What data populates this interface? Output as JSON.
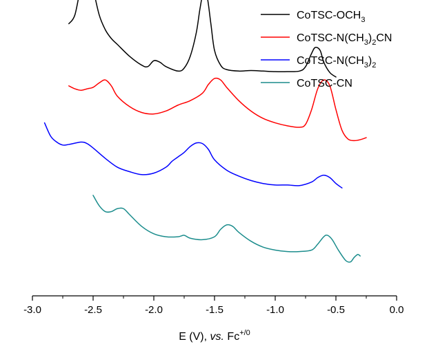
{
  "chart_data": {
    "type": "line",
    "title": "",
    "xlabel": {
      "pre": "E (V), ",
      "italic": "vs.",
      "post": " Fc",
      "sup": "+/0"
    },
    "ylabel": "",
    "xlim": [
      -3.0,
      0.0
    ],
    "y_ticks_shown": false,
    "grid": false,
    "legend": "top-right",
    "x_ticks": [
      {
        "value": -3.0,
        "label": "-3.0"
      },
      {
        "value": -2.5,
        "label": "-2.5"
      },
      {
        "value": -2.0,
        "label": "-2.0"
      },
      {
        "value": -1.5,
        "label": "-1.5"
      },
      {
        "value": -1.0,
        "label": "-1.0"
      },
      {
        "value": -0.5,
        "label": "-0.5"
      },
      {
        "value": 0.0,
        "label": "0.0"
      }
    ],
    "series": [
      {
        "name": "CoTSC-OCH3",
        "name_parts": [
          {
            "t": "CoTSC-OCH"
          },
          {
            "t": "3",
            "sub": true
          }
        ],
        "color": "#000000",
        "points": [
          [
            -2.7,
            4.5
          ],
          [
            -2.65,
            4.8
          ],
          [
            -2.6,
            5.8
          ],
          [
            -2.56,
            6.4
          ],
          [
            -2.53,
            6.3
          ],
          [
            -2.5,
            5.7
          ],
          [
            -2.45,
            4.8
          ],
          [
            -2.4,
            4.3
          ],
          [
            -2.35,
            4.0
          ],
          [
            -2.3,
            3.8
          ],
          [
            -2.2,
            3.4
          ],
          [
            -2.1,
            3.1
          ],
          [
            -2.05,
            3.05
          ],
          [
            -2.0,
            3.25
          ],
          [
            -1.95,
            3.2
          ],
          [
            -1.9,
            3.05
          ],
          [
            -1.8,
            2.9
          ],
          [
            -1.75,
            3.0
          ],
          [
            -1.7,
            3.4
          ],
          [
            -1.65,
            4.2
          ],
          [
            -1.62,
            5.0
          ],
          [
            -1.59,
            5.6
          ],
          [
            -1.56,
            5.4
          ],
          [
            -1.53,
            4.5
          ],
          [
            -1.5,
            3.6
          ],
          [
            -1.45,
            3.1
          ],
          [
            -1.4,
            2.95
          ],
          [
            -1.3,
            2.9
          ],
          [
            -1.2,
            2.92
          ],
          [
            -1.1,
            2.9
          ],
          [
            -1.0,
            2.88
          ],
          [
            -0.9,
            2.88
          ],
          [
            -0.8,
            2.9
          ],
          [
            -0.75,
            3.05
          ],
          [
            -0.7,
            3.5
          ],
          [
            -0.67,
            3.7
          ],
          [
            -0.63,
            3.6
          ],
          [
            -0.6,
            3.2
          ],
          [
            -0.55,
            2.85
          ],
          [
            -0.5,
            2.7
          ]
        ]
      },
      {
        "name": "CoTSC-N(CH3)2CN",
        "name_parts": [
          {
            "t": "CoTSC-N(CH"
          },
          {
            "t": "3",
            "sub": true
          },
          {
            "t": ")"
          },
          {
            "t": "2",
            "sub": true
          },
          {
            "t": "CN"
          }
        ],
        "color": "#ff0000",
        "points": [
          [
            -2.7,
            2.4
          ],
          [
            -2.65,
            2.3
          ],
          [
            -2.6,
            2.25
          ],
          [
            -2.55,
            2.3
          ],
          [
            -2.5,
            2.35
          ],
          [
            -2.45,
            2.5
          ],
          [
            -2.4,
            2.6
          ],
          [
            -2.35,
            2.4
          ],
          [
            -2.3,
            2.05
          ],
          [
            -2.2,
            1.7
          ],
          [
            -2.1,
            1.5
          ],
          [
            -2.0,
            1.45
          ],
          [
            -1.9,
            1.55
          ],
          [
            -1.8,
            1.75
          ],
          [
            -1.7,
            1.9
          ],
          [
            -1.6,
            2.15
          ],
          [
            -1.55,
            2.45
          ],
          [
            -1.5,
            2.65
          ],
          [
            -1.45,
            2.6
          ],
          [
            -1.4,
            2.35
          ],
          [
            -1.3,
            1.9
          ],
          [
            -1.2,
            1.55
          ],
          [
            -1.1,
            1.3
          ],
          [
            -1.0,
            1.15
          ],
          [
            -0.9,
            1.05
          ],
          [
            -0.8,
            1.0
          ],
          [
            -0.75,
            1.1
          ],
          [
            -0.7,
            1.6
          ],
          [
            -0.65,
            2.3
          ],
          [
            -0.6,
            2.6
          ],
          [
            -0.55,
            2.4
          ],
          [
            -0.5,
            1.6
          ],
          [
            -0.45,
            0.9
          ],
          [
            -0.4,
            0.6
          ],
          [
            -0.35,
            0.55
          ],
          [
            -0.3,
            0.58
          ],
          [
            -0.25,
            0.65
          ]
        ]
      },
      {
        "name": "CoTSC-N(CH3)2",
        "name_parts": [
          {
            "t": "CoTSC-N(CH"
          },
          {
            "t": "3",
            "sub": true
          },
          {
            "t": ")"
          },
          {
            "t": "2",
            "sub": true
          }
        ],
        "color": "#0000ff",
        "points": [
          [
            -2.9,
            1.15
          ],
          [
            -2.85,
            0.7
          ],
          [
            -2.8,
            0.5
          ],
          [
            -2.75,
            0.4
          ],
          [
            -2.7,
            0.42
          ],
          [
            -2.6,
            0.5
          ],
          [
            -2.55,
            0.45
          ],
          [
            -2.5,
            0.3
          ],
          [
            -2.4,
            -0.05
          ],
          [
            -2.3,
            -0.35
          ],
          [
            -2.2,
            -0.5
          ],
          [
            -2.1,
            -0.6
          ],
          [
            -2.0,
            -0.55
          ],
          [
            -1.9,
            -0.35
          ],
          [
            -1.85,
            -0.15
          ],
          [
            -1.8,
            0.0
          ],
          [
            -1.75,
            0.15
          ],
          [
            -1.7,
            0.35
          ],
          [
            -1.65,
            0.47
          ],
          [
            -1.6,
            0.45
          ],
          [
            -1.55,
            0.25
          ],
          [
            -1.5,
            -0.1
          ],
          [
            -1.4,
            -0.45
          ],
          [
            -1.3,
            -0.65
          ],
          [
            -1.2,
            -0.8
          ],
          [
            -1.1,
            -0.9
          ],
          [
            -1.0,
            -0.95
          ],
          [
            -0.9,
            -0.95
          ],
          [
            -0.8,
            -0.97
          ],
          [
            -0.7,
            -0.85
          ],
          [
            -0.65,
            -0.7
          ],
          [
            -0.6,
            -0.62
          ],
          [
            -0.55,
            -0.7
          ],
          [
            -0.5,
            -0.9
          ],
          [
            -0.45,
            -1.05
          ]
        ]
      },
      {
        "name": "CoTSC-CN",
        "name_parts": [
          {
            "t": "CoTSC-CN"
          }
        ],
        "color": "#1a8c8c",
        "points": [
          [
            -2.5,
            -1.3
          ],
          [
            -2.45,
            -1.65
          ],
          [
            -2.4,
            -1.85
          ],
          [
            -2.35,
            -1.85
          ],
          [
            -2.3,
            -1.75
          ],
          [
            -2.25,
            -1.75
          ],
          [
            -2.2,
            -1.95
          ],
          [
            -2.1,
            -2.35
          ],
          [
            -2.0,
            -2.6
          ],
          [
            -1.9,
            -2.7
          ],
          [
            -1.8,
            -2.7
          ],
          [
            -1.75,
            -2.65
          ],
          [
            -1.7,
            -2.75
          ],
          [
            -1.6,
            -2.8
          ],
          [
            -1.5,
            -2.7
          ],
          [
            -1.45,
            -2.45
          ],
          [
            -1.4,
            -2.3
          ],
          [
            -1.35,
            -2.35
          ],
          [
            -1.3,
            -2.55
          ],
          [
            -1.2,
            -2.85
          ],
          [
            -1.1,
            -3.05
          ],
          [
            -1.0,
            -3.15
          ],
          [
            -0.9,
            -3.2
          ],
          [
            -0.8,
            -3.2
          ],
          [
            -0.7,
            -3.15
          ],
          [
            -0.65,
            -2.95
          ],
          [
            -0.6,
            -2.7
          ],
          [
            -0.57,
            -2.65
          ],
          [
            -0.53,
            -2.8
          ],
          [
            -0.48,
            -3.15
          ],
          [
            -0.42,
            -3.5
          ],
          [
            -0.38,
            -3.55
          ],
          [
            -0.35,
            -3.4
          ],
          [
            -0.32,
            -3.3
          ],
          [
            -0.3,
            -3.35
          ]
        ]
      }
    ]
  }
}
